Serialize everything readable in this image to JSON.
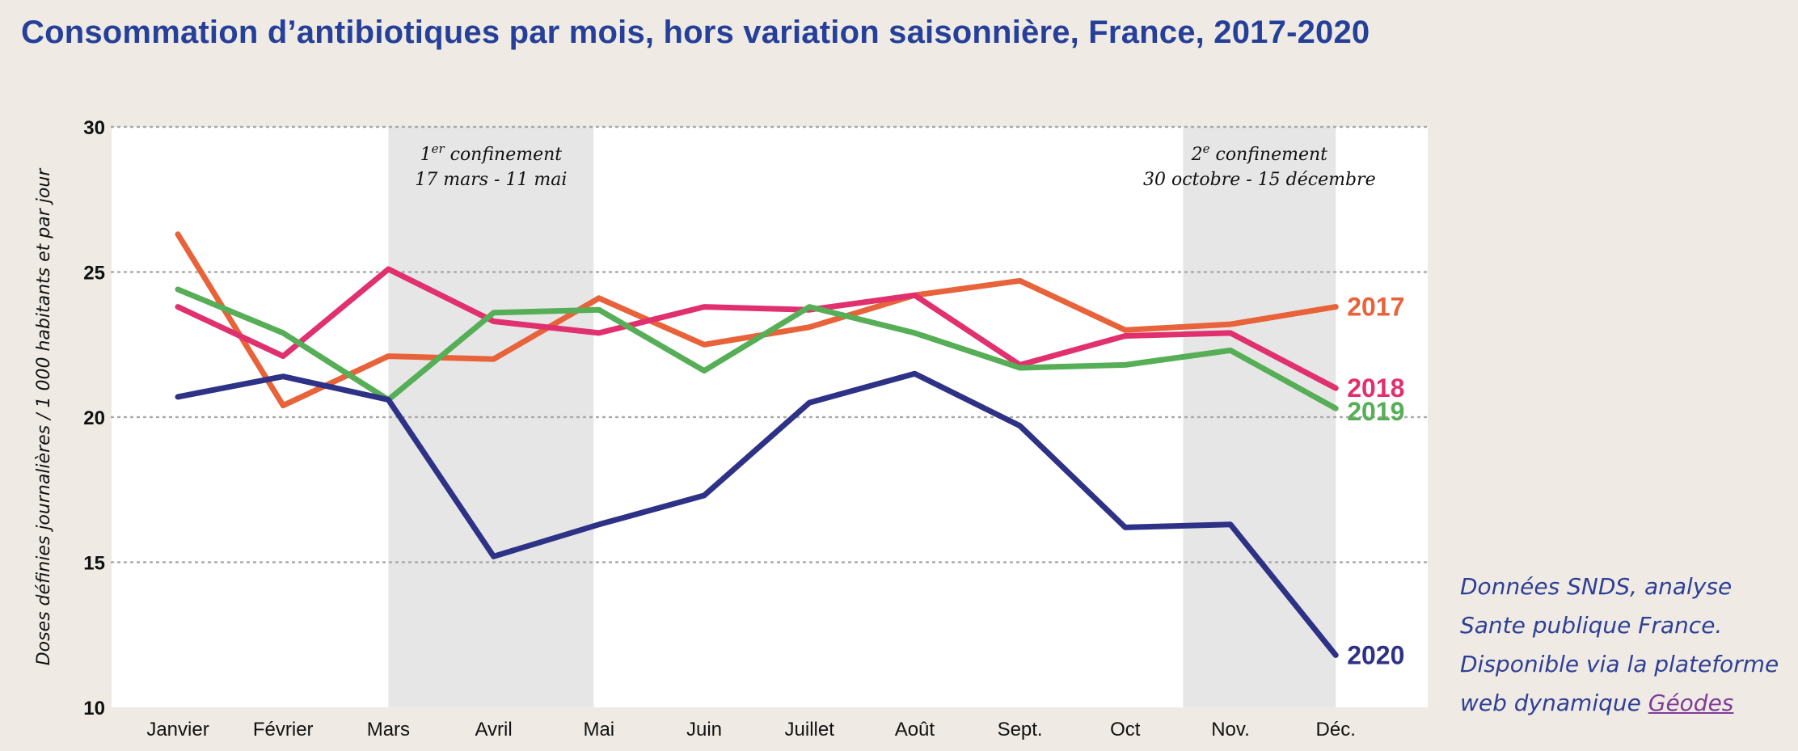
{
  "colors": {
    "background": "#efebe4",
    "plot_bg": "#ffffff",
    "shade": "#e7e6e6",
    "title": "#26409a",
    "s2017": "#e8623a",
    "s2018": "#e0306e",
    "s2019": "#56ae57",
    "s2020": "#2e3286"
  },
  "source": {
    "line1": "Données SNDS, analyse",
    "line2": "Sante publique France.",
    "line3": "Disponible via la plateforme",
    "line4_prefix": "web dynamique ",
    "link": "Géodes"
  },
  "chart_data": {
    "type": "line",
    "title": "Consommation d’antibiotiques par mois, hors variation saisonnière, France, 2017-2020",
    "xlabel": "",
    "ylabel": "Doses définies journalières / 1 000 habitants et par jour",
    "ylim": [
      10,
      30
    ],
    "yticks": [
      10,
      15,
      20,
      25,
      30
    ],
    "grid": "horizontal dotted",
    "categories": [
      "Janvier",
      "Février",
      "Mars",
      "Avril",
      "Mai",
      "Juin",
      "Juillet",
      "Août",
      "Sept.",
      "Oct",
      "Nov.",
      "Déc."
    ],
    "series": [
      {
        "name": "2017",
        "color": "#e8623a",
        "values": [
          26.3,
          20.4,
          22.1,
          22.0,
          24.1,
          22.5,
          23.1,
          24.2,
          24.7,
          23.0,
          23.2,
          23.8
        ]
      },
      {
        "name": "2018",
        "color": "#e0306e",
        "values": [
          23.8,
          22.1,
          25.1,
          23.3,
          22.9,
          23.8,
          23.7,
          24.2,
          21.8,
          22.8,
          22.9,
          21.0
        ]
      },
      {
        "name": "2019",
        "color": "#56ae57",
        "values": [
          24.4,
          22.9,
          20.6,
          23.6,
          23.7,
          21.6,
          23.8,
          22.9,
          21.7,
          21.8,
          22.3,
          20.3
        ]
      },
      {
        "name": "2020",
        "color": "#2e3286",
        "values": [
          20.7,
          21.4,
          20.6,
          15.2,
          16.3,
          17.3,
          20.5,
          21.5,
          19.7,
          16.2,
          16.3,
          11.8
        ]
      }
    ],
    "annotations": [
      {
        "label_line1_num": "1",
        "label_line1_sup": "er",
        "label_line1_rest": " confinement",
        "label_line2": "17 mars - 11 mai",
        "span_months": [
          2.0,
          3.95
        ]
      },
      {
        "label_line1_num": "2",
        "label_line1_sup": "e",
        "label_line1_rest": " confinement",
        "label_line2": "30 octobre - 15 décembre",
        "span_months": [
          9.55,
          11.0
        ]
      }
    ]
  }
}
